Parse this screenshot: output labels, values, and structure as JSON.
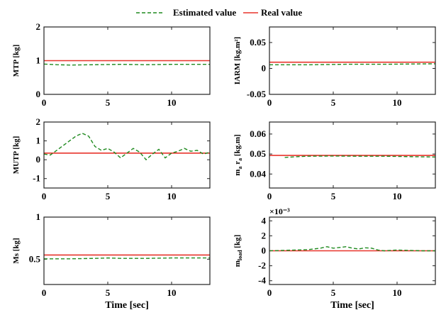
{
  "legend": {
    "estimated_label": "Estimated value",
    "real_label": "Real value",
    "estimated_color": "#1f8a1f",
    "real_color": "#e8342b"
  },
  "chart_data": [
    {
      "type": "line",
      "ylabel": "MTP [kg]",
      "xlabel": "",
      "xlim": [
        0,
        13
      ],
      "ylim": [
        0,
        2
      ],
      "xticks": [
        0,
        5,
        10
      ],
      "yticks": [
        0,
        1,
        2
      ],
      "xtick_labels": [
        "0",
        "5",
        "10"
      ],
      "ytick_labels": [
        "0",
        "1",
        "2"
      ],
      "series": [
        {
          "name": "Real value",
          "x": [
            0,
            13
          ],
          "y": [
            1.0,
            1.0
          ]
        },
        {
          "name": "Estimated value",
          "x": [
            0,
            1,
            2,
            4,
            6,
            8,
            10,
            12,
            13
          ],
          "y": [
            0.9,
            0.88,
            0.87,
            0.88,
            0.89,
            0.88,
            0.89,
            0.89,
            0.89
          ]
        }
      ]
    },
    {
      "type": "line",
      "ylabel": "IARM [kg.m²]",
      "xlabel": "",
      "xlim": [
        0,
        13
      ],
      "ylim": [
        -0.05,
        0.08
      ],
      "xticks": [
        0,
        5,
        10
      ],
      "yticks": [
        -0.05,
        0,
        0.05
      ],
      "xtick_labels": [
        "0",
        "5",
        "10"
      ],
      "ytick_labels": [
        "-0.05",
        "0",
        "0.05"
      ],
      "series": [
        {
          "name": "Real value",
          "x": [
            0,
            13
          ],
          "y": [
            0.012,
            0.012
          ]
        },
        {
          "name": "Estimated value",
          "x": [
            0,
            3,
            6,
            9,
            13
          ],
          "y": [
            0.007,
            0.007,
            0.008,
            0.008,
            0.009
          ]
        }
      ]
    },
    {
      "type": "line",
      "ylabel": "MUTP [kg]",
      "xlabel": "",
      "xlim": [
        0,
        13
      ],
      "ylim": [
        -1.5,
        2
      ],
      "xticks": [
        0,
        5,
        10
      ],
      "yticks": [
        -1,
        0,
        1,
        2
      ],
      "xtick_labels": [
        "0",
        "5",
        "10"
      ],
      "ytick_labels": [
        "-1",
        "0",
        "1",
        "2"
      ],
      "series": [
        {
          "name": "Real value",
          "x": [
            0,
            13
          ],
          "y": [
            0.35,
            0.35
          ]
        },
        {
          "name": "Estimated value",
          "x": [
            0,
            0.5,
            1,
            1.5,
            2,
            2.5,
            3,
            3.5,
            4,
            4.5,
            5,
            5.5,
            6,
            6.5,
            7,
            7.5,
            8,
            8.5,
            9,
            9.5,
            10,
            10.5,
            11,
            11.5,
            12,
            12.5,
            13
          ],
          "y": [
            0.3,
            0.25,
            0.5,
            0.75,
            1.0,
            1.25,
            1.4,
            1.25,
            0.7,
            0.5,
            0.6,
            0.4,
            0.1,
            0.35,
            0.6,
            0.4,
            0.0,
            0.3,
            0.55,
            0.1,
            0.35,
            0.45,
            0.6,
            0.45,
            0.5,
            0.3,
            0.4
          ]
        }
      ]
    },
    {
      "type": "line",
      "ylabel": "m_a r_a [kg.m]",
      "xlabel": "",
      "xlim": [
        0,
        13
      ],
      "ylim": [
        0.033,
        0.066
      ],
      "xticks": [
        0,
        5,
        10
      ],
      "yticks": [
        0.04,
        0.05,
        0.06
      ],
      "xtick_labels": [
        "0",
        "5",
        "10"
      ],
      "ytick_labels": [
        "0.04",
        "0.05",
        "0.06"
      ],
      "series": [
        {
          "name": "Real value",
          "x": [
            0,
            13
          ],
          "y": [
            0.0493,
            0.0493
          ]
        },
        {
          "name": "Estimated value",
          "x": [
            1.2,
            2,
            3,
            5,
            7,
            9,
            11,
            13
          ],
          "y": [
            0.0483,
            0.0486,
            0.0489,
            0.049,
            0.0489,
            0.0489,
            0.0487,
            0.0485
          ]
        }
      ]
    },
    {
      "type": "line",
      "ylabel": "Ms [kg]",
      "xlabel": "Time [sec]",
      "xlim": [
        0,
        13
      ],
      "ylim": [
        0.2,
        1.0
      ],
      "xticks": [
        0,
        5,
        10
      ],
      "yticks": [
        0.5,
        1
      ],
      "xtick_labels": [
        "0",
        "5",
        "10"
      ],
      "ytick_labels": [
        "0.5",
        "1"
      ],
      "series": [
        {
          "name": "Real value",
          "x": [
            0,
            13
          ],
          "y": [
            0.55,
            0.55
          ]
        },
        {
          "name": "Estimated value",
          "x": [
            0,
            2,
            4,
            5,
            6,
            8,
            10,
            12,
            13
          ],
          "y": [
            0.505,
            0.505,
            0.51,
            0.515,
            0.51,
            0.51,
            0.515,
            0.515,
            0.515
          ]
        }
      ]
    },
    {
      "type": "line",
      "ylabel": "m_load [kg]",
      "xlabel": "Time [sec]",
      "exponent_label": "×10⁻³",
      "xlim": [
        0,
        13
      ],
      "ylim": [
        -4.5,
        4.5
      ],
      "xticks": [
        0,
        5,
        10
      ],
      "yticks": [
        -4,
        -2,
        0,
        2,
        4
      ],
      "xtick_labels": [
        "0",
        "5",
        "10"
      ],
      "ytick_labels": [
        "-4",
        "-2",
        "0",
        "2",
        "4"
      ],
      "series": [
        {
          "name": "Real value",
          "x": [
            0,
            13
          ],
          "y": [
            0,
            0
          ]
        },
        {
          "name": "Estimated value",
          "x": [
            0,
            1,
            2,
            3,
            4,
            4.5,
            5,
            5.5,
            6,
            6.5,
            7,
            7.5,
            8,
            8.5,
            9,
            10,
            11,
            12,
            13
          ],
          "y": [
            0,
            0.05,
            0.1,
            0.15,
            0.35,
            0.55,
            0.35,
            0.45,
            0.55,
            0.35,
            0.25,
            0.4,
            0.35,
            0.1,
            0.0,
            0.1,
            0.05,
            0.0,
            0.0
          ]
        }
      ]
    }
  ]
}
